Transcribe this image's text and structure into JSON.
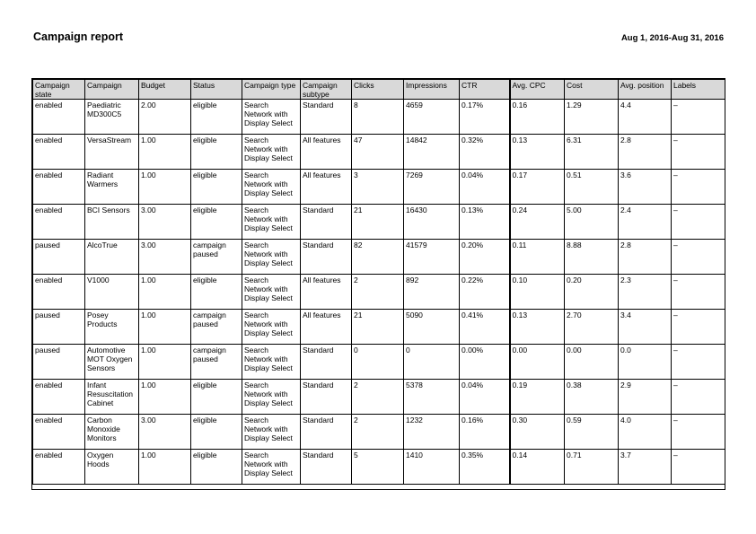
{
  "page": {
    "title": "Campaign report",
    "date_range": "Aug 1, 2016-Aug 31, 2016"
  },
  "colors": {
    "header_bg": "#d9d9d9",
    "border": "#000000",
    "page_bg": "#ffffff"
  },
  "table": {
    "columns": [
      "Campaign state",
      "Campaign",
      "Budget",
      "Status",
      "Campaign type",
      "Campaign subtype",
      "Clicks",
      "Impressions",
      "CTR",
      "Avg. CPC",
      "Cost",
      "Avg. position",
      "Labels"
    ],
    "rows": [
      [
        "enabled",
        "Paediatric MD300C5",
        "2.00",
        "eligible",
        "Search Network with Display Select",
        "Standard",
        "8",
        "4659",
        "0.17%",
        "0.16",
        "1.29",
        "4.4",
        "–"
      ],
      [
        "enabled",
        "VersaStream",
        "1.00",
        "eligible",
        "Search Network with Display Select",
        "All features",
        "47",
        "14842",
        "0.32%",
        "0.13",
        "6.31",
        "2.8",
        "–"
      ],
      [
        "enabled",
        "Radiant Warmers",
        "1.00",
        "eligible",
        "Search Network with Display Select",
        "All features",
        "3",
        "7269",
        "0.04%",
        "0.17",
        "0.51",
        "3.6",
        "–"
      ],
      [
        "enabled",
        "BCI Sensors",
        "3.00",
        "eligible",
        "Search Network with Display Select",
        "Standard",
        "21",
        "16430",
        "0.13%",
        "0.24",
        "5.00",
        "2.4",
        "–"
      ],
      [
        "paused",
        "AlcoTrue",
        "3.00",
        "campaign paused",
        "Search Network with Display Select",
        "Standard",
        "82",
        "41579",
        "0.20%",
        "0.11",
        "8.88",
        "2.8",
        "–"
      ],
      [
        "enabled",
        "V1000",
        "1.00",
        "eligible",
        "Search Network with Display Select",
        "All features",
        "2",
        "892",
        "0.22%",
        "0.10",
        "0.20",
        "2.3",
        "–"
      ],
      [
        "paused",
        "Posey Products",
        "1.00",
        "campaign paused",
        "Search Network with Display Select",
        "All features",
        "21",
        "5090",
        "0.41%",
        "0.13",
        "2.70",
        "3.4",
        "–"
      ],
      [
        "paused",
        "Automotive MOT Oxygen Sensors",
        "1.00",
        "campaign paused",
        "Search Network with Display Select",
        "Standard",
        "0",
        "0",
        "0.00%",
        "0.00",
        "0.00",
        "0.0",
        "–"
      ],
      [
        "enabled",
        "Infant Resuscitation Cabinet",
        "1.00",
        "eligible",
        "Search Network with Display Select",
        "Standard",
        "2",
        "5378",
        "0.04%",
        "0.19",
        "0.38",
        "2.9",
        "–"
      ],
      [
        "enabled",
        "Carbon Monoxide Monitors",
        "3.00",
        "eligible",
        "Search Network with Display Select",
        "Standard",
        "2",
        "1232",
        "0.16%",
        "0.30",
        "0.59",
        "4.0",
        "–"
      ],
      [
        "enabled",
        "Oxygen Hoods",
        "1.00",
        "eligible",
        "Search Network with Display Select",
        "Standard",
        "5",
        "1410",
        "0.35%",
        "0.14",
        "0.71",
        "3.7",
        "–"
      ]
    ]
  }
}
